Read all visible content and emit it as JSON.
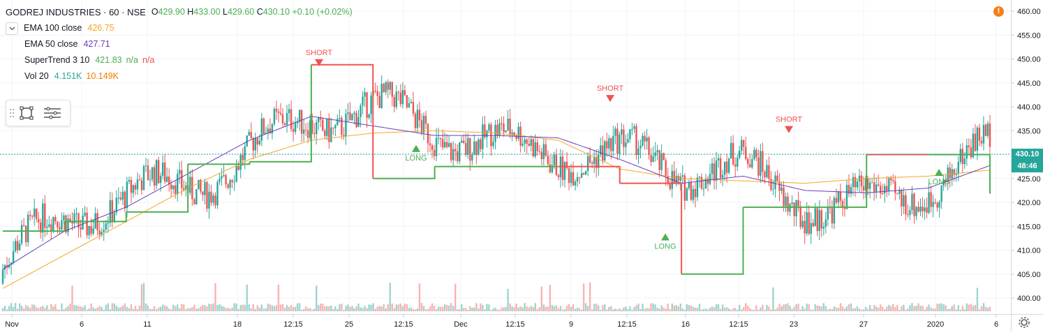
{
  "header": {
    "symbol": "GODREJ INDUSTRIES · 60 · NSE",
    "ohlc": {
      "o_label": "O",
      "o": "429.90",
      "h_label": "H",
      "h": "433.00",
      "l_label": "L",
      "l": "429.60",
      "c_label": "C",
      "c": "430.10",
      "change": "+0.10 (+0.02%)"
    }
  },
  "indicators": [
    {
      "name": "EMA 100 close",
      "values": [
        "426.75"
      ],
      "colors": [
        "#f5a623"
      ]
    },
    {
      "name": "EMA 50 close",
      "values": [
        "427.71"
      ],
      "colors": [
        "#6a3db8"
      ]
    },
    {
      "name": "SuperTrend 3 10",
      "values": [
        "421.83",
        "n/a",
        "n/a"
      ],
      "colors": [
        "#4caf50",
        "#4caf50",
        "#ef5350"
      ]
    },
    {
      "name": "Vol 20",
      "values": [
        "4.151K",
        "10.149K"
      ],
      "colors": [
        "#26a69a",
        "#f57c00"
      ]
    }
  ],
  "price_axis": {
    "ticks": [
      "460.00",
      "455.00",
      "450.00",
      "445.00",
      "440.00",
      "435.00",
      "425.00",
      "420.00",
      "415.00",
      "410.00",
      "405.00",
      "400.00"
    ],
    "last_price": "430.10",
    "countdown": "48:46"
  },
  "time_axis": {
    "ticks": [
      "Nov",
      "6",
      "11",
      "18",
      "12:15",
      "25",
      "12:15",
      "Dec",
      "12:15",
      "9",
      "12:15",
      "16",
      "12:15",
      "23",
      "27",
      "2020",
      "6"
    ]
  },
  "signals": [
    {
      "type": "short",
      "label": "SHORT"
    },
    {
      "type": "long",
      "label": "LONG"
    },
    {
      "type": "short",
      "label": "SHORT"
    },
    {
      "type": "long",
      "label": "LONG"
    },
    {
      "type": "short",
      "label": "SHORT"
    },
    {
      "type": "long",
      "label": "LONG"
    }
  ],
  "colors": {
    "up": "#26a69a",
    "down": "#ef5350",
    "supertrend_up": "#4caf50",
    "supertrend_down": "#ef5350",
    "ema100": "#f5a623",
    "ema50": "#6a3db8",
    "vol_up": "#9fd4cf",
    "vol_down": "#f7b4b2",
    "last_price_tag": "#26a69a",
    "countdown_tag": "#26a69a",
    "alert": "#f57f17"
  },
  "icons": {
    "collapse": "chevron-down-icon",
    "rectangle_tool": "rectangle-icon",
    "list_tool": "list-icon",
    "alert": "alert-icon",
    "settings": "settings-icon"
  },
  "alert_badge": "!",
  "chart_data": {
    "type": "line",
    "title": "GODREJ INDUSTRIES · 60 · NSE",
    "ylim": [
      398,
      462
    ],
    "x": [
      "Nov",
      "6",
      "11",
      "18",
      "12:15",
      "25",
      "12:15",
      "Dec",
      "12:15",
      "9",
      "12:15",
      "16",
      "12:15",
      "23",
      "27",
      "2020",
      "6"
    ],
    "series": [
      {
        "name": "EMA 100 close",
        "values": [
          402,
          409,
          416,
          423,
          429,
          433,
          434.5,
          435,
          434.5,
          433,
          427,
          425,
          424.5,
          424,
          425,
          425.5,
          426.75
        ]
      },
      {
        "name": "EMA 50 close",
        "values": [
          406,
          414,
          419,
          426,
          433,
          438,
          436,
          434,
          434,
          433.5,
          429,
          424,
          425.5,
          422.5,
          422,
          423,
          427.71
        ]
      },
      {
        "name": "SuperTrend 3 10",
        "values": [
          414,
          416,
          418,
          428,
          428.5,
          448.8,
          425,
          427.5,
          427.5,
          427.5,
          424,
          405,
          419,
          419,
          430,
          430,
          421.83
        ]
      }
    ]
  }
}
